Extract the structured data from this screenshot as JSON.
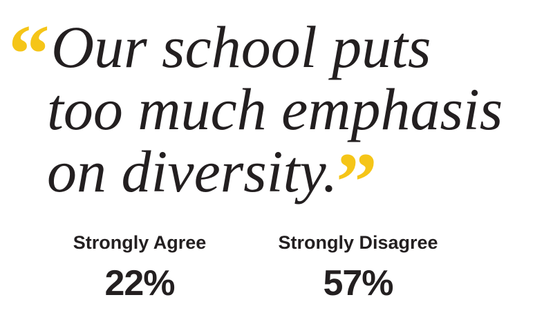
{
  "quote": {
    "open": "“",
    "lines": [
      "Our school puts",
      "too much emphasis",
      "on diversity."
    ],
    "close": "”"
  },
  "stats": [
    {
      "label": "Strongly Agree",
      "value": "22%"
    },
    {
      "label": "Strongly Disagree",
      "value": "57%"
    }
  ]
}
